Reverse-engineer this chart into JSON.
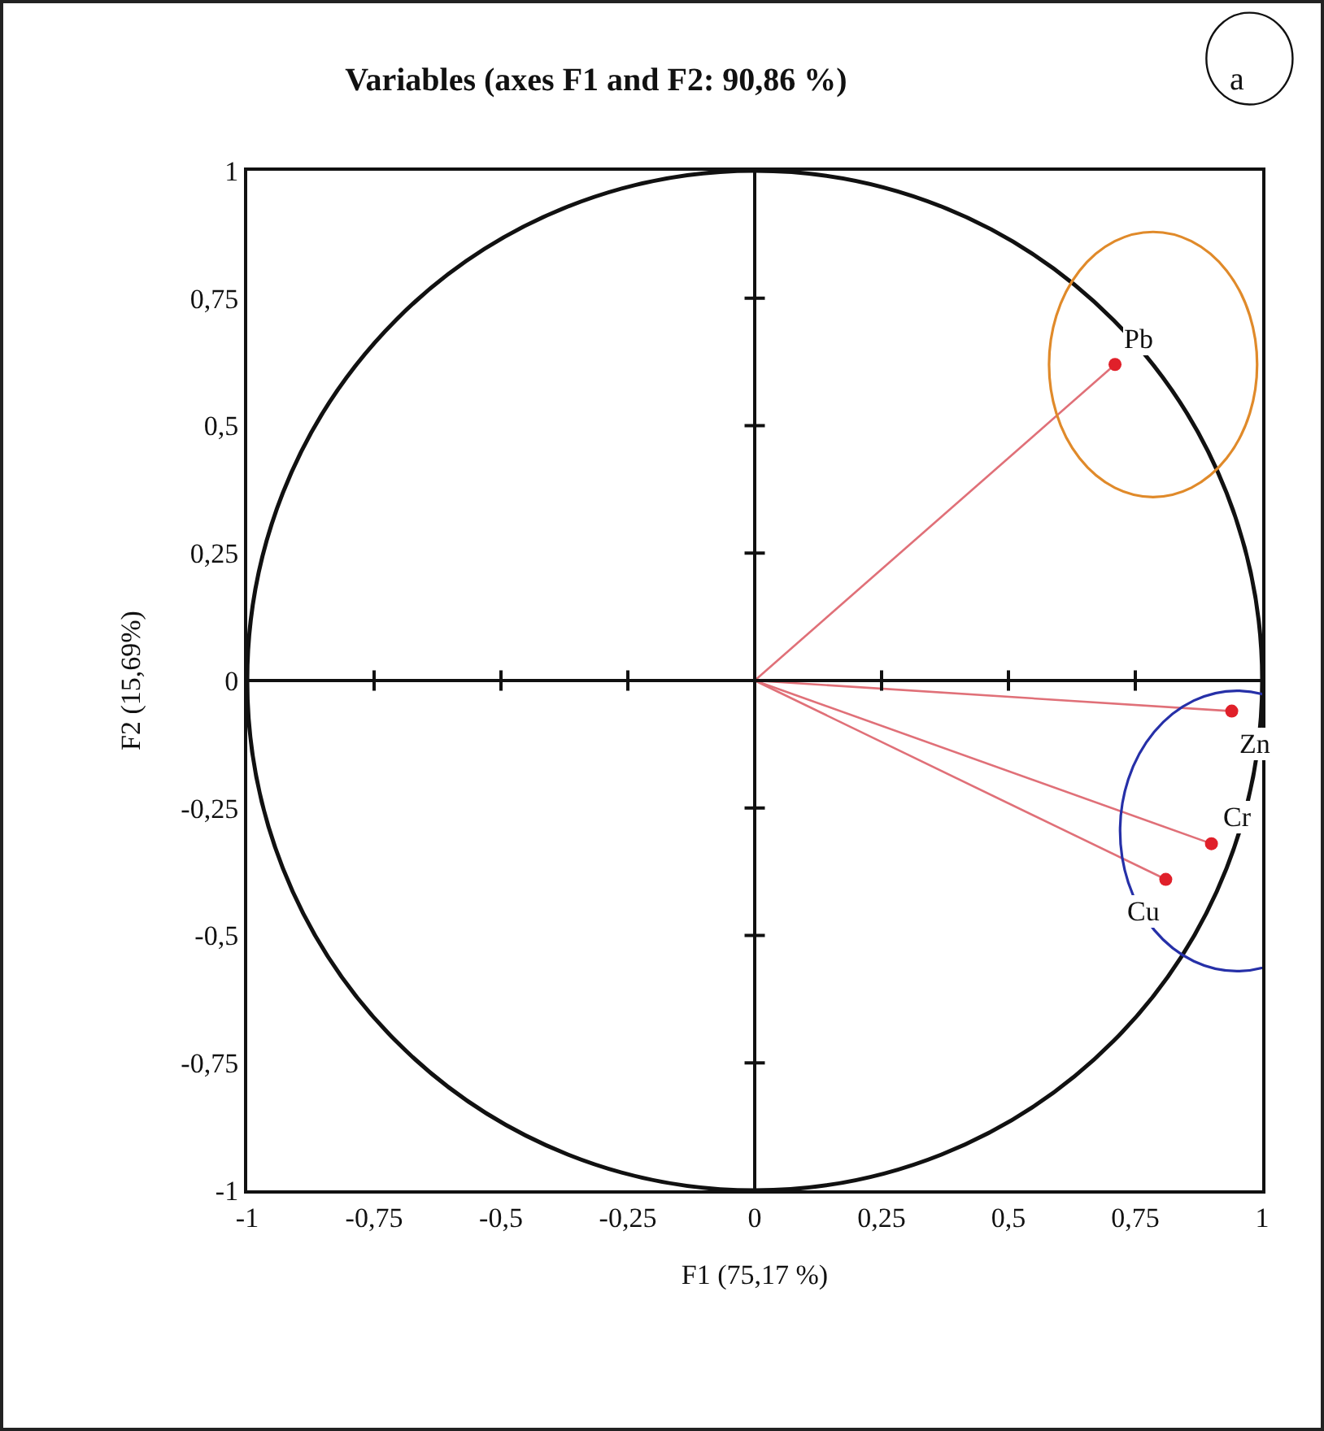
{
  "chart_data": {
    "type": "scatter",
    "title": "Variables (axes F1 and F2: 90,86 %)",
    "xlabel": "F1 (75,17 %)",
    "ylabel": "F2 (15,69%)",
    "series": [
      {
        "name": "Pb",
        "color": "#e0202a",
        "x": [
          0.71
        ],
        "values": [
          0.62
        ]
      },
      {
        "name": "Zn",
        "color": "#e0202a",
        "x": [
          0.94
        ],
        "values": [
          -0.06
        ]
      },
      {
        "name": "Cr",
        "color": "#e0202a",
        "x": [
          0.9
        ],
        "values": [
          -0.32
        ]
      },
      {
        "name": "Cu",
        "color": "#e0202a",
        "x": [
          0.81
        ],
        "values": [
          -0.39
        ]
      }
    ],
    "xlim": [
      -1,
      1
    ],
    "ylim": [
      -1,
      1
    ],
    "xticks": [
      -1,
      {
        "value": -0.75,
        "label": "-0,75"
      },
      {
        "value": -0.5,
        "label": "-0,5"
      },
      {
        "value": -0.25,
        "label": "-0,25"
      },
      0,
      {
        "value": 0.25,
        "label": "0,25"
      },
      {
        "value": 0.5,
        "label": "0,5"
      },
      {
        "value": 0.75,
        "label": "0,75"
      },
      1
    ],
    "yticks": [
      -1,
      {
        "value": -0.75,
        "label": "-0,75"
      },
      {
        "value": -0.5,
        "label": "-0,5"
      },
      {
        "value": -0.25,
        "label": "-0,25"
      },
      0,
      {
        "value": 0.25,
        "label": "0,25"
      },
      {
        "value": 0.5,
        "label": "0,5"
      },
      {
        "value": 0.75,
        "label": "0,75"
      },
      1
    ],
    "annotations": [
      "a"
    ],
    "legend": false,
    "marker": "circle"
  }
}
